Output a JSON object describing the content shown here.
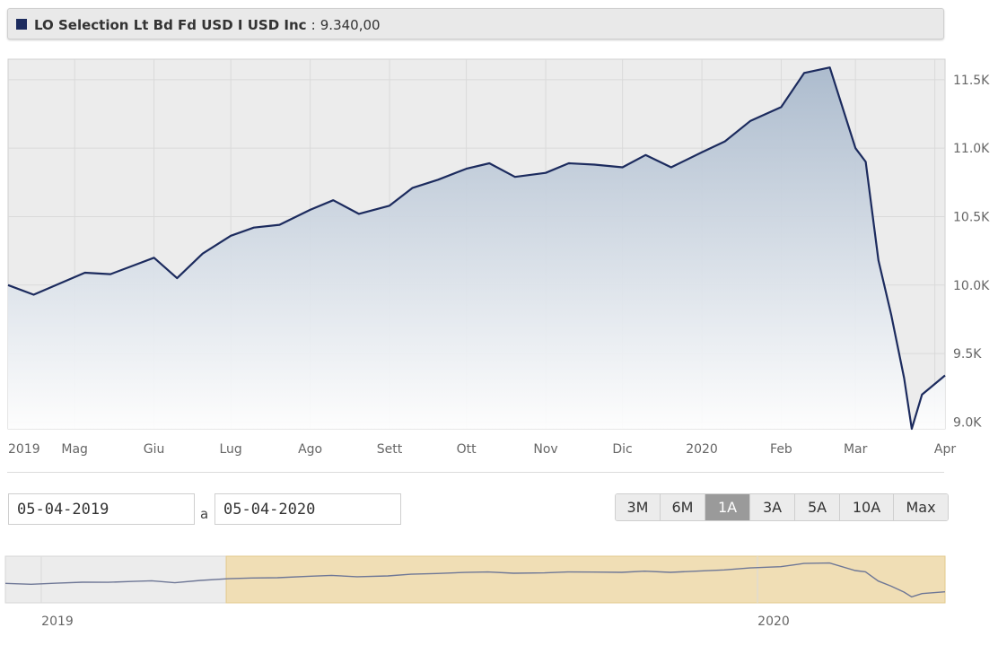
{
  "legend": {
    "name": "LO Selection Lt Bd Fd USD I USD Inc",
    "separator": ":",
    "value": "9.340,00",
    "color": "#1c2b5e"
  },
  "chart_data": {
    "type": "area",
    "series": [
      {
        "name": "LO Selection Lt Bd Fd USD I USD Inc",
        "x": [
          "2019-04-05",
          "2019-04-15",
          "2019-04-25",
          "2019-05-05",
          "2019-05-15",
          "2019-05-25",
          "2019-06-01",
          "2019-06-10",
          "2019-06-20",
          "2019-07-01",
          "2019-07-10",
          "2019-07-20",
          "2019-08-01",
          "2019-08-10",
          "2019-08-20",
          "2019-09-01",
          "2019-09-10",
          "2019-09-20",
          "2019-10-01",
          "2019-10-10",
          "2019-10-20",
          "2019-11-01",
          "2019-11-10",
          "2019-11-20",
          "2019-12-01",
          "2019-12-10",
          "2019-12-20",
          "2020-01-01",
          "2020-01-10",
          "2020-01-20",
          "2020-02-01",
          "2020-02-10",
          "2020-02-20",
          "2020-03-01",
          "2020-03-05",
          "2020-03-10",
          "2020-03-15",
          "2020-03-20",
          "2020-03-23",
          "2020-03-27",
          "2020-04-05"
        ],
        "values": [
          10000,
          9930,
          10010,
          10090,
          10080,
          10150,
          10200,
          10050,
          10230,
          10360,
          10420,
          10440,
          10550,
          10620,
          10520,
          10580,
          10710,
          10770,
          10850,
          10890,
          10790,
          10820,
          10890,
          10880,
          10860,
          10950,
          10860,
          10970,
          11050,
          11200,
          11300,
          11550,
          11590,
          11000,
          10900,
          10180,
          9780,
          9320,
          8950,
          9200,
          9340
        ]
      }
    ],
    "xticks": [
      "2019",
      "Mag",
      "Giu",
      "Lug",
      "Ago",
      "Sett",
      "Ott",
      "Nov",
      "Dic",
      "2020",
      "Feb",
      "Mar",
      "Apr"
    ],
    "yticks": [
      "9.0K",
      "9.5K",
      "10.0K",
      "10.5K",
      "11.0K",
      "11.5K"
    ],
    "ylim": [
      8950,
      11650
    ],
    "y_tick_values": [
      9000,
      9500,
      10000,
      10500,
      11000,
      11500
    ],
    "line_color": "#1c2b5e",
    "fill_color": "#a9b9cc",
    "grid": true,
    "navigator": {
      "labels": [
        "2019",
        "2020"
      ],
      "selection_color": "#f0deb5"
    }
  },
  "date_range": {
    "from": "05-04-2019",
    "separator": "a",
    "to": "05-04-2020"
  },
  "range_buttons": [
    {
      "label": "3M",
      "active": false
    },
    {
      "label": "6M",
      "active": false
    },
    {
      "label": "1A",
      "active": true
    },
    {
      "label": "3A",
      "active": false
    },
    {
      "label": "5A",
      "active": false
    },
    {
      "label": "10A",
      "active": false
    },
    {
      "label": "Max",
      "active": false
    }
  ]
}
